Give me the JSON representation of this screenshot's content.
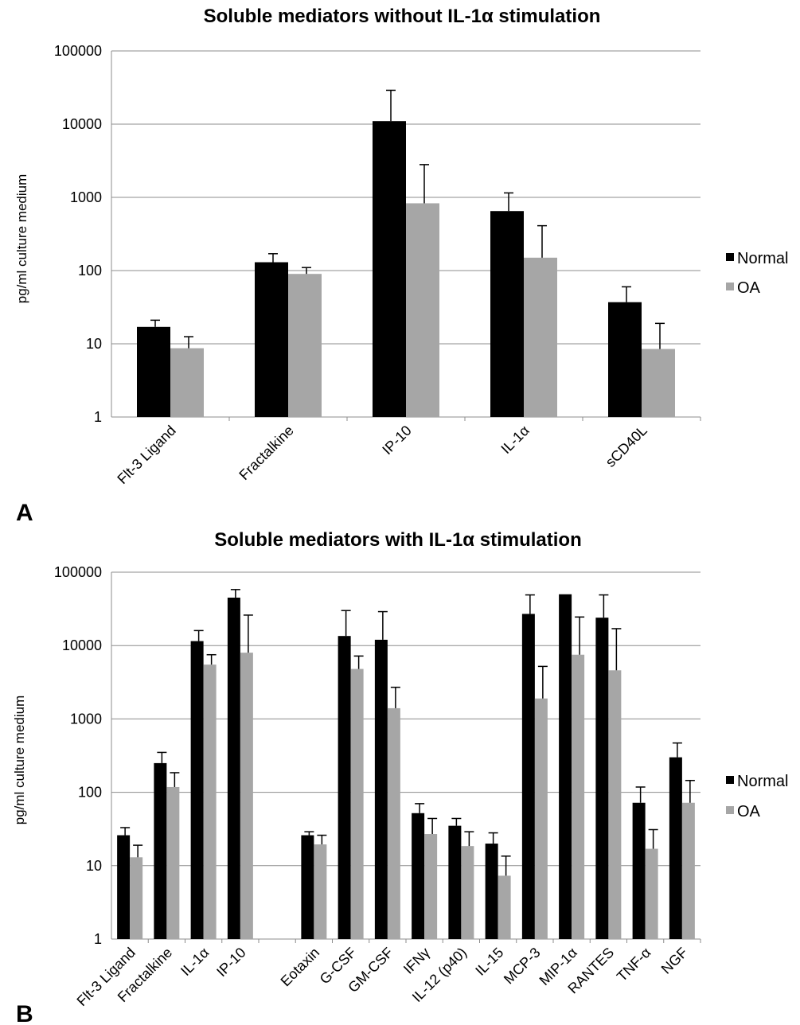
{
  "chart_data": [
    {
      "type": "bar",
      "panel_label": "A",
      "title": "Soluble mediators without IL-1α stimulation",
      "xlabel": "",
      "ylabel": "pg/ml culture medium",
      "yscale": "log",
      "ylim": [
        1,
        100000
      ],
      "yticks": [
        "1",
        "10",
        "100",
        "1000",
        "10000",
        "100000"
      ],
      "grid": true,
      "legend_position": "right",
      "categories": [
        "Flt-3 Ligand",
        "Fractalkine",
        "IP-10",
        "IL-1α",
        "sCD40L"
      ],
      "series": [
        {
          "name": "Normal",
          "color": "#000000",
          "values": [
            17,
            130,
            11000,
            650,
            37
          ],
          "error": [
            21,
            170,
            29000,
            1150,
            60
          ]
        },
        {
          "name": "OA",
          "color": "#a6a6a6",
          "values": [
            8.7,
            90,
            830,
            150,
            8.5
          ],
          "error": [
            12.5,
            110,
            2800,
            410,
            19
          ]
        }
      ]
    },
    {
      "type": "bar",
      "panel_label": "B",
      "title": "Soluble mediators with IL-1α stimulation",
      "xlabel": "",
      "ylabel": "pg/ml culture medium",
      "yscale": "log",
      "ylim": [
        1,
        100000
      ],
      "yticks": [
        "1",
        "10",
        "100",
        "1000",
        "10000",
        "100000"
      ],
      "grid": true,
      "legend_position": "right",
      "categories": [
        "Flt-3 Ligand",
        "Fractalkine",
        "IL-1α",
        "IP-10",
        "",
        "Eotaxin",
        "G-CSF",
        "GM-CSF",
        "IFNγ",
        "IL-12 (p40)",
        "IL-15",
        "MCP-3",
        "MIP-1α",
        "RANTES",
        "TNF-α",
        "NGF"
      ],
      "series": [
        {
          "name": "Normal",
          "color": "#000000",
          "values": [
            26,
            250,
            11500,
            45000,
            null,
            26,
            13500,
            12000,
            52,
            35,
            20,
            27000,
            50000,
            24000,
            72,
            300
          ],
          "error": [
            33,
            350,
            16000,
            58000,
            null,
            29,
            30000,
            29000,
            70,
            44,
            28,
            49000,
            50000,
            49000,
            118,
            470
          ]
        },
        {
          "name": "OA",
          "color": "#a6a6a6",
          "values": [
            13,
            118,
            5500,
            8000,
            null,
            19.5,
            4800,
            1400,
            27,
            18.5,
            7.3,
            1900,
            7500,
            4600,
            17,
            72
          ],
          "error": [
            19,
            185,
            7500,
            26000,
            null,
            26,
            7200,
            2700,
            44,
            29,
            13.5,
            5200,
            24500,
            17000,
            31,
            145
          ]
        }
      ]
    }
  ]
}
